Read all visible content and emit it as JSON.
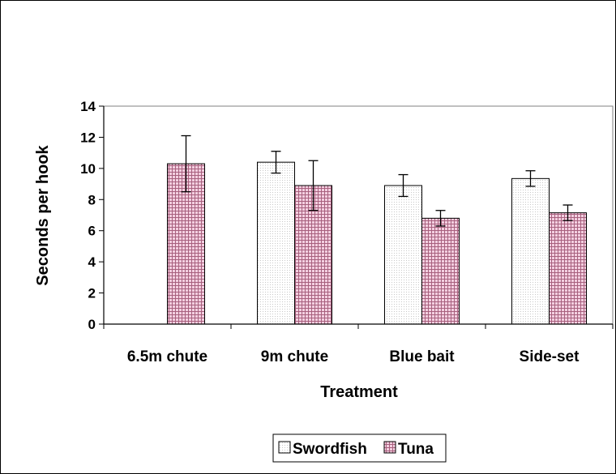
{
  "chart_data": {
    "type": "bar",
    "title": "",
    "xlabel": "Treatment",
    "ylabel": "Seconds per hook",
    "ylim": [
      0,
      14
    ],
    "yticks": [
      0,
      2,
      4,
      6,
      8,
      10,
      12,
      14
    ],
    "categories": [
      "6.5m chute",
      "9m chute",
      "Blue bait",
      "Side-set"
    ],
    "series": [
      {
        "name": "Swordfish",
        "color": "#ffffff",
        "pattern": "fine-dots",
        "values": [
          null,
          10.4,
          8.9,
          9.35
        ],
        "errors": [
          null,
          0.7,
          0.7,
          0.5
        ]
      },
      {
        "name": "Tuna",
        "color": "#e8b8d0",
        "pattern": "grid",
        "values": [
          10.3,
          8.9,
          6.8,
          7.15
        ],
        "errors": [
          1.8,
          1.6,
          0.5,
          0.5
        ]
      }
    ],
    "legend_position": "bottom-center",
    "grid": false
  }
}
